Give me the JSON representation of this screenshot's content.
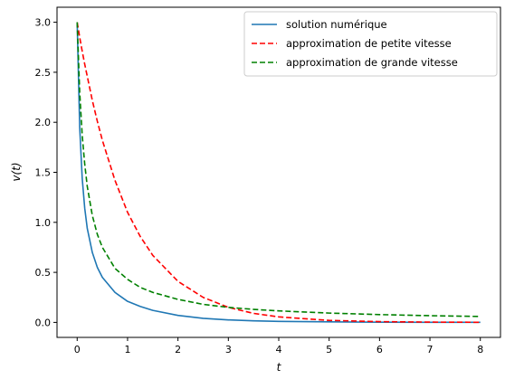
{
  "chart_data": {
    "type": "line",
    "xlabel": "t",
    "ylabel": "v(t)",
    "xlim": [
      -0.4,
      8.4
    ],
    "ylim": [
      -0.15,
      3.15
    ],
    "xticks": [
      0,
      1,
      2,
      3,
      4,
      5,
      6,
      7,
      8
    ],
    "xtick_labels": [
      "0",
      "1",
      "2",
      "3",
      "4",
      "5",
      "6",
      "7",
      "8"
    ],
    "yticks": [
      0.0,
      0.5,
      1.0,
      1.5,
      2.0,
      2.5,
      3.0
    ],
    "ytick_labels": [
      "0.0",
      "0.5",
      "1.0",
      "1.5",
      "2.0",
      "2.5",
      "3.0"
    ],
    "grid": false,
    "legend_position": "top-right",
    "x": [
      0,
      0.05,
      0.1,
      0.15,
      0.2,
      0.3,
      0.4,
      0.5,
      0.75,
      1,
      1.25,
      1.5,
      2,
      2.5,
      3,
      3.5,
      4,
      5,
      6,
      7,
      8
    ],
    "series": [
      {
        "name": "solution numérique",
        "color": "#1f77b4",
        "style": "solid",
        "values": [
          3.0,
          1.95,
          1.44,
          1.14,
          0.94,
          0.7,
          0.55,
          0.45,
          0.3,
          0.21,
          0.16,
          0.12,
          0.07,
          0.04,
          0.025,
          0.016,
          0.01,
          0.005,
          0.002,
          0.001,
          0.0005
        ]
      },
      {
        "name": "approximation de petite vitesse",
        "color": "#ff0000",
        "style": "dashed",
        "values": [
          3.0,
          2.85,
          2.71,
          2.58,
          2.46,
          2.22,
          2.01,
          1.82,
          1.42,
          1.1,
          0.86,
          0.67,
          0.41,
          0.25,
          0.15,
          0.09,
          0.055,
          0.02,
          0.0075,
          0.003,
          0.001
        ]
      },
      {
        "name": "approximation de grande vitesse",
        "color": "#008000",
        "style": "dashed",
        "values": [
          3.0,
          2.3,
          1.87,
          1.58,
          1.36,
          1.07,
          0.88,
          0.75,
          0.54,
          0.43,
          0.35,
          0.3,
          0.23,
          0.18,
          0.15,
          0.13,
          0.115,
          0.093,
          0.078,
          0.067,
          0.059
        ]
      }
    ]
  }
}
